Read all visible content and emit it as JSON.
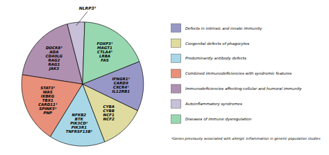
{
  "chart_data": {
    "type": "pie",
    "categories": [
      "NLRP3¹",
      "DOCK8¹\nADA\nCD40LG\nRAG2\nRAG1\nJAK3",
      "STAT3¹\nWAS\nIKBKG\nTBX1\nCARD11¹\nSPINK5¹\nPNP",
      "NFKB2\nBTK\nPIK3CD¹\nPIK3R1\nTNFRSF13B¹",
      "CYBA\nCYBB\nNCF1\nNCF2",
      "IFNGR1¹\nCARD9\nCXCR4¹\nIL12RB1",
      "FOXP3¹\nMAGT1\nCTLA4¹\nLRBA\nFAS"
    ],
    "values": [
      5,
      20,
      20,
      16,
      13,
      14,
      20
    ],
    "colors": [
      "#c8bfd8",
      "#b090b0",
      "#e8907a",
      "#a8d8e8",
      "#e0dca0",
      "#9898c8",
      "#98d8b0"
    ],
    "legend": "right",
    "legend_entries": [
      {
        "name": "Defects in intrinsic and innate immunity",
        "color": "#9898c8"
      },
      {
        "name": "Congenital defects of phagocytes",
        "color": "#e0dca0"
      },
      {
        "name": "Predominantly antibody defects",
        "color": "#a8d8e8"
      },
      {
        "name": "Combined immunodeficiencies with syndromic features",
        "color": "#e8907a"
      },
      {
        "name": "Immunodeficiencies affecting cellular and humoral immunity",
        "color": "#b090b0"
      },
      {
        "name": "Autoinflammatory syndromes",
        "color": "#c8bfd8"
      },
      {
        "name": "Diseases of immune dysregulation",
        "color": "#98d8b0"
      }
    ],
    "annotations": [
      "¹Genes previously associated with allergic inflammation in genetic population studies"
    ],
    "tick_labels": false
  }
}
